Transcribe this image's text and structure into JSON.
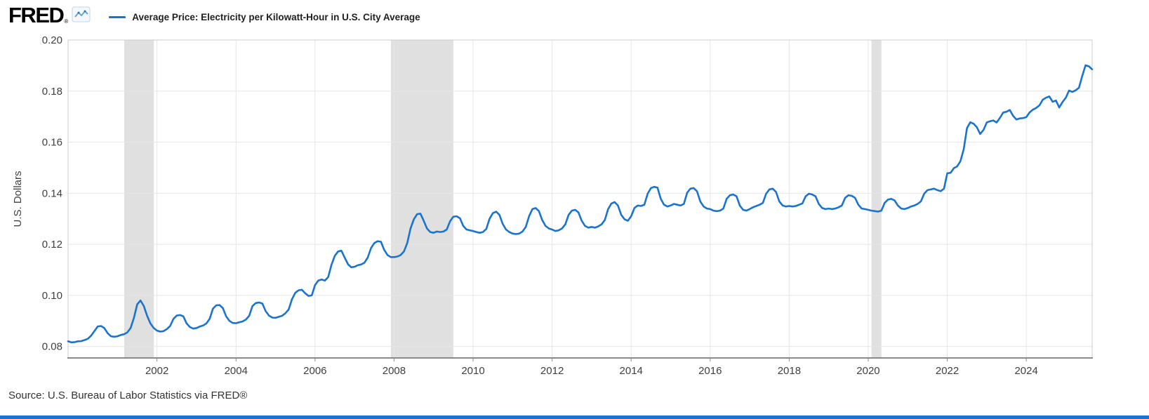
{
  "header": {
    "logo": "FRED",
    "registered": "®",
    "legend": {
      "label": "Average Price: Electricity per Kilowatt-Hour in U.S. City Average"
    }
  },
  "source": "Source: U.S. Bureau of Labor Statistics via FRED®",
  "colors": {
    "line": "#1a73d1",
    "recession_band": "#e0e0e0",
    "grid": "#e6e6e6",
    "plot_border": "#cccccc",
    "axis": "#8a8a8a",
    "tick_text": "#3f3f3f",
    "bottom_bar": "#1a73d1"
  },
  "chart_data": {
    "type": "line",
    "title": "Average Price: Electricity per Kilowatt-Hour in U.S. City Average",
    "xlabel": "",
    "ylabel": "U.S. Dollars",
    "x_range": [
      1999.75,
      2025.667
    ],
    "y_range": [
      0.0755,
      0.2
    ],
    "y_ticks": [
      0.08,
      0.1,
      0.12,
      0.14,
      0.16,
      0.18,
      0.2
    ],
    "x_ticks": [
      2002,
      2004,
      2006,
      2008,
      2010,
      2012,
      2014,
      2016,
      2018,
      2020,
      2022,
      2024
    ],
    "grid": true,
    "legend_position": "top-left",
    "recessions": [
      {
        "start": 2001.17,
        "end": 2001.92
      },
      {
        "start": 2007.92,
        "end": 2009.5
      },
      {
        "start": 2020.083,
        "end": 2020.333
      }
    ],
    "series": [
      {
        "name": "Average Price: Electricity per Kilowatt-Hour in U.S. City Average",
        "units": "U.S. Dollars",
        "frequency": "monthly",
        "x_start": 1999.75,
        "x_step": 0.0833333,
        "values": [
          0.082,
          0.0816,
          0.0817,
          0.082,
          0.0821,
          0.0825,
          0.083,
          0.0842,
          0.086,
          0.0878,
          0.088,
          0.0872,
          0.0852,
          0.084,
          0.0838,
          0.084,
          0.0845,
          0.0848,
          0.0855,
          0.0872,
          0.0912,
          0.0965,
          0.098,
          0.0958,
          0.092,
          0.089,
          0.0872,
          0.0862,
          0.0858,
          0.086,
          0.0868,
          0.088,
          0.0908,
          0.0921,
          0.0923,
          0.0918,
          0.089,
          0.0876,
          0.087,
          0.0872,
          0.0878,
          0.0882,
          0.089,
          0.0908,
          0.0948,
          0.0961,
          0.0962,
          0.095,
          0.0918,
          0.09,
          0.0892,
          0.0891,
          0.0895,
          0.0898,
          0.0905,
          0.092,
          0.0958,
          0.097,
          0.0972,
          0.0968,
          0.0938,
          0.0921,
          0.0913,
          0.0912,
          0.0916,
          0.092,
          0.093,
          0.0945,
          0.0985,
          0.101,
          0.102,
          0.1022,
          0.1008,
          0.0998,
          0.1,
          0.104,
          0.1058,
          0.1062,
          0.1058,
          0.1072,
          0.112,
          0.1155,
          0.1172,
          0.1175,
          0.1148,
          0.1122,
          0.111,
          0.1112,
          0.1118,
          0.1121,
          0.1128,
          0.1148,
          0.1185,
          0.1205,
          0.1212,
          0.121,
          0.1178,
          0.1158,
          0.115,
          0.115,
          0.1152,
          0.1158,
          0.1172,
          0.1205,
          0.1262,
          0.1298,
          0.1318,
          0.132,
          0.1292,
          0.1262,
          0.1248,
          0.1245,
          0.125,
          0.1248,
          0.125,
          0.1258,
          0.129,
          0.1308,
          0.131,
          0.1302,
          0.1272,
          0.1258,
          0.1255,
          0.1252,
          0.1248,
          0.1245,
          0.1248,
          0.126,
          0.13,
          0.1322,
          0.1328,
          0.1315,
          0.128,
          0.1258,
          0.1248,
          0.1242,
          0.124,
          0.1242,
          0.125,
          0.1268,
          0.131,
          0.1338,
          0.1342,
          0.133,
          0.1295,
          0.1272,
          0.1262,
          0.1258,
          0.1252,
          0.1255,
          0.1262,
          0.1278,
          0.1315,
          0.1332,
          0.1335,
          0.1325,
          0.1292,
          0.1272,
          0.1265,
          0.1268,
          0.1265,
          0.127,
          0.1278,
          0.1295,
          0.1338,
          0.136,
          0.1365,
          0.1352,
          0.1315,
          0.1298,
          0.1292,
          0.131,
          0.1342,
          0.1352,
          0.135,
          0.1355,
          0.1398,
          0.142,
          0.1425,
          0.1422,
          0.1378,
          0.1355,
          0.1348,
          0.1352,
          0.1358,
          0.1355,
          0.1352,
          0.1358,
          0.1402,
          0.1418,
          0.142,
          0.1408,
          0.1368,
          0.1348,
          0.134,
          0.1338,
          0.1332,
          0.133,
          0.1332,
          0.134,
          0.1378,
          0.1392,
          0.1395,
          0.1388,
          0.1352,
          0.1335,
          0.1332,
          0.1338,
          0.1345,
          0.135,
          0.1355,
          0.1362,
          0.1398,
          0.1415,
          0.1418,
          0.1405,
          0.1368,
          0.1352,
          0.1348,
          0.135,
          0.1348,
          0.135,
          0.1355,
          0.136,
          0.1388,
          0.1398,
          0.1395,
          0.1388,
          0.1358,
          0.1342,
          0.1338,
          0.134,
          0.1338,
          0.134,
          0.1345,
          0.1352,
          0.1382,
          0.1392,
          0.139,
          0.1382,
          0.1355,
          0.134,
          0.1338,
          0.1335,
          0.1332,
          0.133,
          0.1328,
          0.1332,
          0.1362,
          0.1375,
          0.1378,
          0.1372,
          0.1352,
          0.134,
          0.1338,
          0.1342,
          0.1348,
          0.1352,
          0.1358,
          0.1368,
          0.1398,
          0.1412,
          0.1415,
          0.1418,
          0.1412,
          0.1408,
          0.1418,
          0.1478,
          0.148,
          0.1498,
          0.1505,
          0.1525,
          0.1572,
          0.1655,
          0.1678,
          0.1672,
          0.1658,
          0.1632,
          0.1648,
          0.1677,
          0.1682,
          0.1685,
          0.1677,
          0.1695,
          0.1716,
          0.1719,
          0.1726,
          0.1703,
          0.1689,
          0.1693,
          0.1694,
          0.1698,
          0.1716,
          0.1727,
          0.1734,
          0.1744,
          0.1766,
          0.1774,
          0.1779,
          0.1758,
          0.1763,
          0.1736,
          0.1757,
          0.1774,
          0.1802,
          0.1797,
          0.1803,
          0.1813,
          0.1859,
          0.1901,
          0.1897,
          0.1885
        ]
      }
    ]
  }
}
